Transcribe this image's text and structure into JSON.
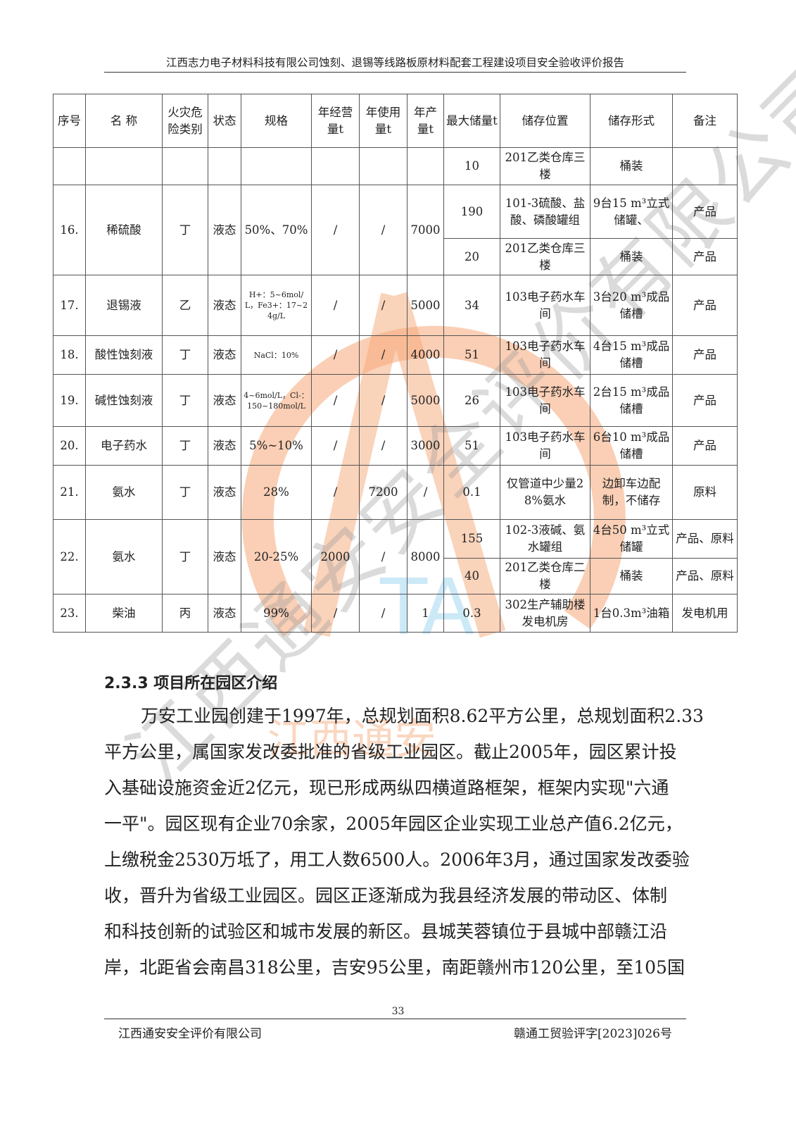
{
  "header": {
    "title": "江西志力电子材料科技有限公司蚀刻、退锡等线路板原材料配套工程建设项目安全验收评价报告"
  },
  "table": {
    "columns": [
      "序号",
      "名 称",
      "火灾危险类别",
      "状态",
      "规格",
      "年经营量t",
      "年使用量t",
      "年产量t",
      "最大储量t",
      "储存位置",
      "储存形式",
      "备注"
    ],
    "rows": [
      {
        "no": "",
        "name": "",
        "fire": "",
        "state": "",
        "spec": "",
        "op": "",
        "use": "",
        "prod": "",
        "sub": [
          {
            "max": "10",
            "loc": "201乙类仓库三楼",
            "form": "桶装",
            "note": ""
          }
        ]
      },
      {
        "no": "16.",
        "name": "稀硫酸",
        "fire": "丁",
        "state": "液态",
        "spec": "50%、70%",
        "op": "/",
        "use": "/",
        "prod": "7000",
        "sub": [
          {
            "max": "190",
            "loc": "101-3硫酸、盐酸、磷酸罐组",
            "form": "9台15 m³立式储罐、",
            "note": "产品"
          },
          {
            "max": "20",
            "loc": "201乙类仓库三楼",
            "form": "桶装",
            "note": "产品"
          }
        ]
      },
      {
        "no": "17.",
        "name": "退锡液",
        "fire": "乙",
        "state": "液态",
        "spec": "H+：5~6mol/L，Fe3+：17~24g/L",
        "op": "/",
        "use": "/",
        "prod": "5000",
        "sub": [
          {
            "max": "34",
            "loc": "103电子药水车间",
            "form": "3台20 m³成品储槽",
            "note": "产品"
          }
        ]
      },
      {
        "no": "18.",
        "name": "酸性蚀刻液",
        "fire": "丁",
        "state": "液态",
        "spec": "NaCl：10%",
        "op": "/",
        "use": "/",
        "prod": "4000",
        "sub": [
          {
            "max": "51",
            "loc": "103电子药水车间",
            "form": "4台15 m³成品储槽",
            "note": "产品"
          }
        ]
      },
      {
        "no": "19.",
        "name": "碱性蚀刻液",
        "fire": "丁",
        "state": "液态",
        "spec": "4~6mol/L，Cl-：150~180mol/L",
        "op": "/",
        "use": "/",
        "prod": "5000",
        "sub": [
          {
            "max": "26",
            "loc": "103电子药水车间",
            "form": "2台15 m³成品储槽",
            "note": "产品"
          }
        ]
      },
      {
        "no": "20.",
        "name": "电子药水",
        "fire": "丁",
        "state": "液态",
        "spec": "5%~10%",
        "op": "/",
        "use": "/",
        "prod": "3000",
        "sub": [
          {
            "max": "51",
            "loc": "103电子药水车间",
            "form": "6台10 m³成品储槽",
            "note": "产品"
          }
        ]
      },
      {
        "no": "21.",
        "name": "氨水",
        "fire": "丁",
        "state": "液态",
        "spec": "28%",
        "op": "/",
        "use": "7200",
        "prod": "/",
        "sub": [
          {
            "max": "0.1",
            "loc": "仅管道中少量28%氨水",
            "form": "边卸车边配制，不储存",
            "note": "原料"
          }
        ]
      },
      {
        "no": "22.",
        "name": "氨水",
        "fire": "丁",
        "state": "液态",
        "spec": "20-25%",
        "op": "2000",
        "use": "/",
        "prod": "8000",
        "sub": [
          {
            "max": "155",
            "loc": "102-3液碱、氨水罐组",
            "form": "4台50 m³立式储罐",
            "note": "产品、原料"
          },
          {
            "max": "40",
            "loc": "201乙类仓库二楼",
            "form": "桶装",
            "note": "产品、原料"
          }
        ]
      },
      {
        "no": "23.",
        "name": "柴油",
        "fire": "丙",
        "state": "液态",
        "spec": "99%",
        "op": "/",
        "use": "/",
        "prod": "1",
        "sub": [
          {
            "max": "0.3",
            "loc": "302生产辅助楼发电机房",
            "form": "1台0.3m³油箱",
            "note": "发电机用"
          }
        ]
      }
    ]
  },
  "section": {
    "heading": "2.3.3 项目所在园区介绍",
    "lines": [
      "万安工业园创建于1997年，总规划面积8.62平方公里，总规划面积2.33",
      "平方公里，属国家发改委批准的省级工业园区。截止2005年，园区累计投",
      "入基础设施资金近2亿元，现已形成两纵四横道路框架，框架内实现\"六通",
      "一平\"。园区现有企业70余家，2005年园区企业实现工业总产值6.2亿元，",
      "上缴税金2530万坻了，用工人数6500人。2006年3月，通过国家发改委验",
      "收，晋升为省级工业园区。园区正逐渐成为我县经济发展的带动区、体制",
      "和科技创新的试验区和城市发展的新区。县城芙蓉镇位于县城中部赣江沿",
      "岸，北距省会南昌318公里，吉安95公里，南距赣州市120公里，至105国"
    ]
  },
  "footer": {
    "page": "33",
    "company": "江西通安安全评价有限公司",
    "doc_no": "赣通工贸验评字[2023]026号"
  },
  "watermark": {
    "text": "江西通安安全评价有限公司",
    "logo_text": "江西通安",
    "colors": {
      "arc": "#f5a878",
      "text": "#9a9a9a",
      "logo": "#8fd0ee"
    }
  }
}
